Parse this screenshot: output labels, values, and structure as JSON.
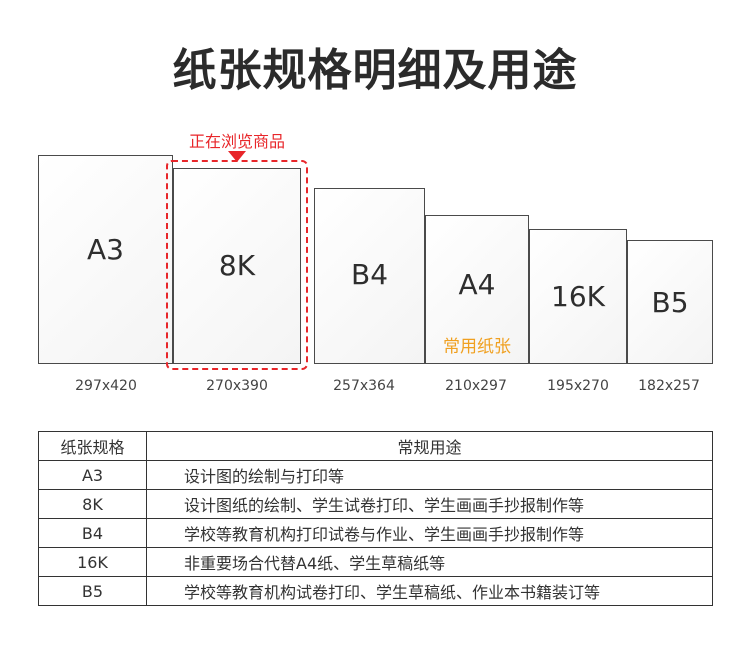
{
  "title": "纸张规格明细及用途",
  "browsing_label": "正在浏览商品",
  "sheets": [
    {
      "name": "A3",
      "dims": "297x420",
      "usage_tag": ""
    },
    {
      "name": "8K",
      "dims": "270x390",
      "usage_tag": ""
    },
    {
      "name": "B4",
      "dims": "257x364",
      "usage_tag": ""
    },
    {
      "name": "A4",
      "dims": "210x297",
      "usage_tag": "常用纸张"
    },
    {
      "name": "16K",
      "dims": "195x270",
      "usage_tag": ""
    },
    {
      "name": "B5",
      "dims": "182x257",
      "usage_tag": ""
    }
  ],
  "table": {
    "headers": [
      "纸张规格",
      "常规用途"
    ],
    "rows": [
      {
        "spec": "A3",
        "use": "设计图的绘制与打印等"
      },
      {
        "spec": "8K",
        "use": "设计图纸的绘制、学生试卷打印、学生画画手抄报制作等"
      },
      {
        "spec": "B4",
        "use": "学校等教育机构打印试卷与作业、学生画画手抄报制作等"
      },
      {
        "spec": "16K",
        "use": "非重要场合代替A4纸、学生草稿纸等"
      },
      {
        "spec": "B5",
        "use": "学校等教育机构试卷打印、学生草稿纸、作业本书籍装订等"
      }
    ]
  },
  "colors": {
    "highlight": "#e8262a",
    "usage_tag": "#f0a020",
    "title": "#2b2b2b"
  }
}
